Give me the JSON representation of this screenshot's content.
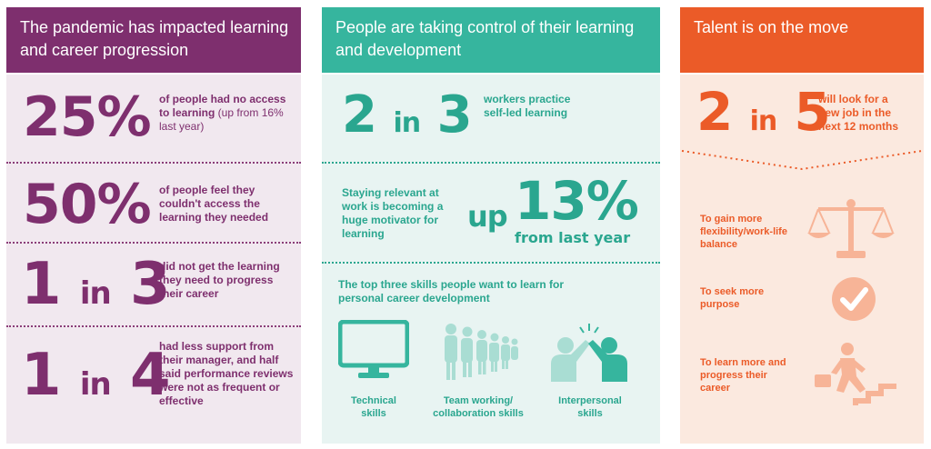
{
  "panel1": {
    "title": "The pandemic has impacted learning and career progression",
    "stats": [
      {
        "figure": "25%",
        "text": "of people had no access to learning",
        "note": " (up from 16% last year)"
      },
      {
        "figure": "50%",
        "text": "of people feel they couldn't access the learning they needed"
      },
      {
        "figure_a": "1",
        "figure_mid": "in",
        "figure_b": "3",
        "text": "did not get the learning they need to progress their career"
      },
      {
        "figure_a": "1",
        "figure_mid": "in",
        "figure_b": "4",
        "text": "had less support from their manager, and half said performance reviews were not as frequent or effective"
      }
    ],
    "accent": "#7e2f6e"
  },
  "panel2": {
    "title": "People are taking control of their learning and development",
    "stat1": {
      "figure_a": "2",
      "figure_mid": "in",
      "figure_b": "3",
      "text": "workers practice self-led learning"
    },
    "stat2": {
      "text": "Staying relevant at work is becoming a huge motivator for learning",
      "prefix": "up",
      "figure": "13%",
      "suffix": "from last year"
    },
    "skills_intro": "The top three skills people want to learn for personal career development",
    "skills": [
      {
        "label": "Technical skills",
        "icon": "monitor-icon"
      },
      {
        "label": "Team working/ collaboration skills",
        "icon": "people-group-icon"
      },
      {
        "label": "Interpersonal skills",
        "icon": "high-five-icon"
      }
    ],
    "accent": "#36b59e"
  },
  "panel3": {
    "title": "Talent is on the move",
    "stat": {
      "figure_a": "2",
      "figure_mid": "in",
      "figure_b": "5",
      "text": "will look for a new job in the next 12 months"
    },
    "reasons": [
      {
        "label": "To gain more flexibility/work-life balance",
        "icon": "scales-icon"
      },
      {
        "label": "To seek more purpose",
        "icon": "checkmark-circle-icon"
      },
      {
        "label": "To learn more and progress their career",
        "icon": "climbing-stairs-icon"
      }
    ],
    "accent": "#eb5b28"
  }
}
